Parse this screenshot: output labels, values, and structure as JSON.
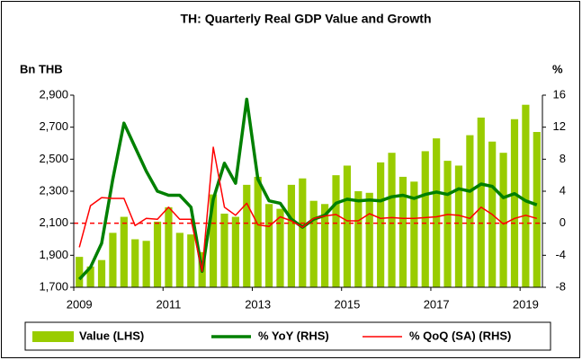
{
  "chart_data": {
    "type": "bar_line",
    "title": "TH: Quarterly Real GDP Value and Growth",
    "y_label": "Bn THB",
    "y2_label": "%",
    "categories": [
      "2009",
      null,
      null,
      null,
      null,
      null,
      null,
      null,
      "2011",
      null,
      null,
      null,
      null,
      null,
      null,
      null,
      "2013",
      null,
      null,
      null,
      null,
      null,
      null,
      null,
      "2015",
      null,
      null,
      null,
      null,
      null,
      null,
      null,
      "2017",
      null,
      null,
      null,
      null,
      null,
      null,
      null,
      "2019",
      null
    ],
    "series": [
      {
        "name": "Value (LHS)",
        "kind": "bar",
        "axis": "y",
        "color": "#99cc00",
        "values": [
          1890,
          1830,
          1870,
          2040,
          2140,
          2000,
          1990,
          2110,
          2200,
          2040,
          2030,
          1920,
          2280,
          2160,
          2140,
          2340,
          2390,
          2220,
          2190,
          2340,
          2380,
          2240,
          2220,
          2400,
          2460,
          2300,
          2290,
          2480,
          2540,
          2390,
          2360,
          2550,
          2630,
          2490,
          2460,
          2650,
          2760,
          2610,
          2540,
          2750,
          2840,
          2670
        ]
      },
      {
        "name": "% YoY (RHS)",
        "kind": "line",
        "axis": "y2",
        "color": "#008000",
        "values": [
          -7,
          -5.5,
          -2.5,
          5.5,
          12.5,
          9.5,
          6.5,
          4,
          3.5,
          3.5,
          2,
          -6,
          3,
          7.5,
          5,
          15.5,
          5.5,
          2.8,
          2.5,
          0.5,
          -0.5,
          0.5,
          1,
          2.5,
          3,
          2.8,
          2.9,
          2.8,
          3.3,
          3.5,
          3.1,
          3.6,
          3.9,
          3.6,
          4.3,
          4,
          4.9,
          4.6,
          3.2,
          3.7,
          2.8,
          2.3
        ]
      },
      {
        "name": "% QoQ (SA) (RHS)",
        "kind": "line",
        "axis": "y2",
        "color": "#ff0000",
        "values": [
          -3,
          2.2,
          3.2,
          3.1,
          3.1,
          -0.3,
          0.6,
          0.5,
          2,
          0.5,
          0.5,
          -6,
          9.5,
          2,
          1,
          2.5,
          -0.2,
          -0.4,
          0.8,
          0.3,
          -0.5,
          0.6,
          0.9,
          1.1,
          0.3,
          0.3,
          1.2,
          0.6,
          0.7,
          0.6,
          0.6,
          0.7,
          0.8,
          1.1,
          1,
          0.6,
          2,
          1.1,
          -0.1,
          0.6,
          1,
          0.6
        ]
      }
    ],
    "reference_line": {
      "value": 0,
      "axis": "y2",
      "color": "#ff0000",
      "style": "dashed"
    },
    "ylim": [
      1700,
      2900
    ],
    "yticks": [
      {
        "value": 1700,
        "label": "1,700"
      },
      {
        "value": 1900,
        "label": "1,900"
      },
      {
        "value": 2100,
        "label": "2,100"
      },
      {
        "value": 2300,
        "label": "2,300"
      },
      {
        "value": 2500,
        "label": "2,500"
      },
      {
        "value": 2700,
        "label": "2,700"
      },
      {
        "value": 2900,
        "label": "2,900"
      }
    ],
    "y2lim": [
      -8,
      16
    ],
    "y2ticks": [
      -8,
      -4,
      0,
      4,
      8,
      12,
      16
    ],
    "legend": "bottom"
  }
}
